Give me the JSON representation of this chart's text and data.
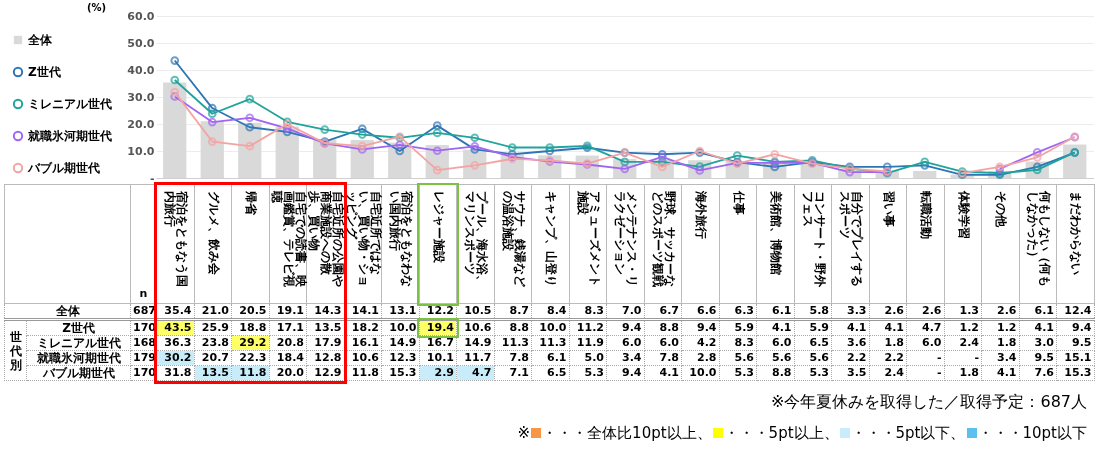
{
  "chart_data": {
    "type": "line",
    "ylabel": "(%)",
    "categories": [
      "宿泊をともなう国内旅行",
      "グルメ、飲み会",
      "帰省",
      "自宅での読書、映画鑑賞、テレビ視聴",
      "自宅近所の公園や商業施設への散歩、買い物",
      "自宅近所ではない、買い物・ショッピング",
      "宿泊をともなわない国内旅行",
      "レジャー施設",
      "プール、海水浴、マリンスポーツ",
      "サウナ、銭湯などの温浴施設",
      "キャンプ、山登り",
      "アミューズメント施設",
      "メンテナンス・リラクゼーション",
      "野球、サッカーなどのスポーツ観戦",
      "海外旅行",
      "仕事",
      "美術館、博物館",
      "コンサート・野外フェス",
      "自分でプレイするスポーツ",
      "習い事",
      "転職活動",
      "体験学習",
      "その他",
      "何もしない（何もしなかった）",
      "まだわからない"
    ],
    "series": [
      {
        "name": "全体",
        "type": "bar",
        "color": "#d9d9d9",
        "values": [
          35.4,
          21.0,
          20.5,
          19.1,
          14.3,
          14.1,
          13.1,
          12.2,
          10.5,
          8.7,
          8.4,
          8.3,
          7.0,
          6.7,
          6.6,
          6.3,
          6.1,
          5.8,
          3.3,
          2.6,
          2.6,
          1.3,
          2.6,
          6.1,
          12.4
        ],
        "value_labels": [
          "35.4",
          "21.0",
          "20.5",
          "19.1",
          "14.3",
          "14.1",
          "13.1",
          "12.2",
          "10.5",
          "8.7",
          "8.4",
          "8.3",
          "7.0",
          "6.7",
          "6.6",
          "6.3",
          "6.1",
          "5.8",
          "3.3",
          "2.6",
          "2.6",
          "1.3",
          "2.6",
          "6.1",
          "12.4"
        ]
      },
      {
        "name": "Z世代",
        "color": "#2e75b6",
        "values": [
          43.5,
          25.9,
          18.8,
          17.1,
          13.5,
          18.2,
          10.0,
          19.4,
          10.6,
          8.8,
          10.0,
          11.2,
          9.4,
          8.8,
          9.4,
          5.9,
          4.1,
          5.9,
          4.1,
          4.1,
          4.7,
          1.2,
          1.2,
          4.1,
          9.4
        ],
        "value_labels": [
          "43.5",
          "25.9",
          "18.8",
          "17.1",
          "13.5",
          "18.2",
          "10.0",
          "19.4",
          "10.6",
          "8.8",
          "10.0",
          "11.2",
          "9.4",
          "8.8",
          "9.4",
          "5.9",
          "4.1",
          "5.9",
          "4.1",
          "4.1",
          "4.7",
          "1.2",
          "1.2",
          "4.1",
          "9.4"
        ]
      },
      {
        "name": "ミレニアル世代",
        "color": "#1fa39a",
        "values": [
          36.3,
          23.8,
          29.2,
          20.8,
          17.9,
          16.1,
          14.9,
          16.7,
          14.9,
          11.3,
          11.3,
          11.9,
          6.0,
          6.0,
          4.2,
          8.3,
          6.0,
          6.5,
          3.6,
          1.8,
          6.0,
          2.4,
          1.8,
          3.0,
          9.5
        ],
        "value_labels": [
          "36.3",
          "23.8",
          "29.2",
          "20.8",
          "17.9",
          "16.1",
          "14.9",
          "16.7",
          "14.9",
          "11.3",
          "11.3",
          "11.9",
          "6.0",
          "6.0",
          "4.2",
          "8.3",
          "6.0",
          "6.5",
          "3.6",
          "1.8",
          "6.0",
          "2.4",
          "1.8",
          "3.0",
          "9.5"
        ]
      },
      {
        "name": "就職氷河期世代",
        "color": "#a066f2",
        "values": [
          30.2,
          20.7,
          22.3,
          18.4,
          12.8,
          10.6,
          12.3,
          10.1,
          11.7,
          7.8,
          6.1,
          5.0,
          3.4,
          7.8,
          2.8,
          5.6,
          5.6,
          5.6,
          2.2,
          2.2,
          null,
          null,
          3.4,
          9.5,
          15.1
        ],
        "value_labels": [
          "30.2",
          "20.7",
          "22.3",
          "18.4",
          "12.8",
          "10.6",
          "12.3",
          "10.1",
          "11.7",
          "7.8",
          "6.1",
          "5.0",
          "3.4",
          "7.8",
          "2.8",
          "5.6",
          "5.6",
          "5.6",
          "2.2",
          "2.2",
          "-",
          "-",
          "3.4",
          "9.5",
          "15.1"
        ]
      },
      {
        "name": "バブル期世代",
        "color": "#f4a3a3",
        "values": [
          31.8,
          13.5,
          11.8,
          20.0,
          12.9,
          11.8,
          15.3,
          2.9,
          4.7,
          7.1,
          6.5,
          5.3,
          9.4,
          4.1,
          10.0,
          5.3,
          8.8,
          5.3,
          3.5,
          2.4,
          null,
          1.8,
          4.1,
          7.6,
          15.3
        ],
        "value_labels": [
          "31.8",
          "13.5",
          "11.8",
          "20.0",
          "12.9",
          "11.8",
          "15.3",
          "2.9",
          "4.7",
          "7.1",
          "6.5",
          "5.3",
          "9.4",
          "4.1",
          "10.0",
          "5.3",
          "8.8",
          "5.3",
          "3.5",
          "2.4",
          "-",
          "1.8",
          "4.1",
          "7.6",
          "15.3"
        ]
      }
    ],
    "ylim": [
      0,
      60
    ],
    "yticks": [
      {
        "value": 0,
        "label": "-"
      },
      {
        "value": 10,
        "label": "10.0"
      },
      {
        "value": 20,
        "label": "20.0"
      },
      {
        "value": 30,
        "label": "30.0"
      },
      {
        "value": 40,
        "label": "40.0"
      },
      {
        "value": 50,
        "label": "50.0"
      },
      {
        "value": 60,
        "label": "60.0"
      }
    ],
    "grid": "y",
    "legend": "left",
    "marker": "circle",
    "line_style": "solid",
    "annotations": [
      "n",
      "687",
      "170",
      "168",
      "179",
      "170",
      "世代別",
      "※今年夏休みを取得した／取得予定：687人",
      "※",
      "・・・全体比10pt以上、",
      "・・・5pt以上、",
      "・・・5pt以下、",
      "・・・10pt以下"
    ]
  }
}
